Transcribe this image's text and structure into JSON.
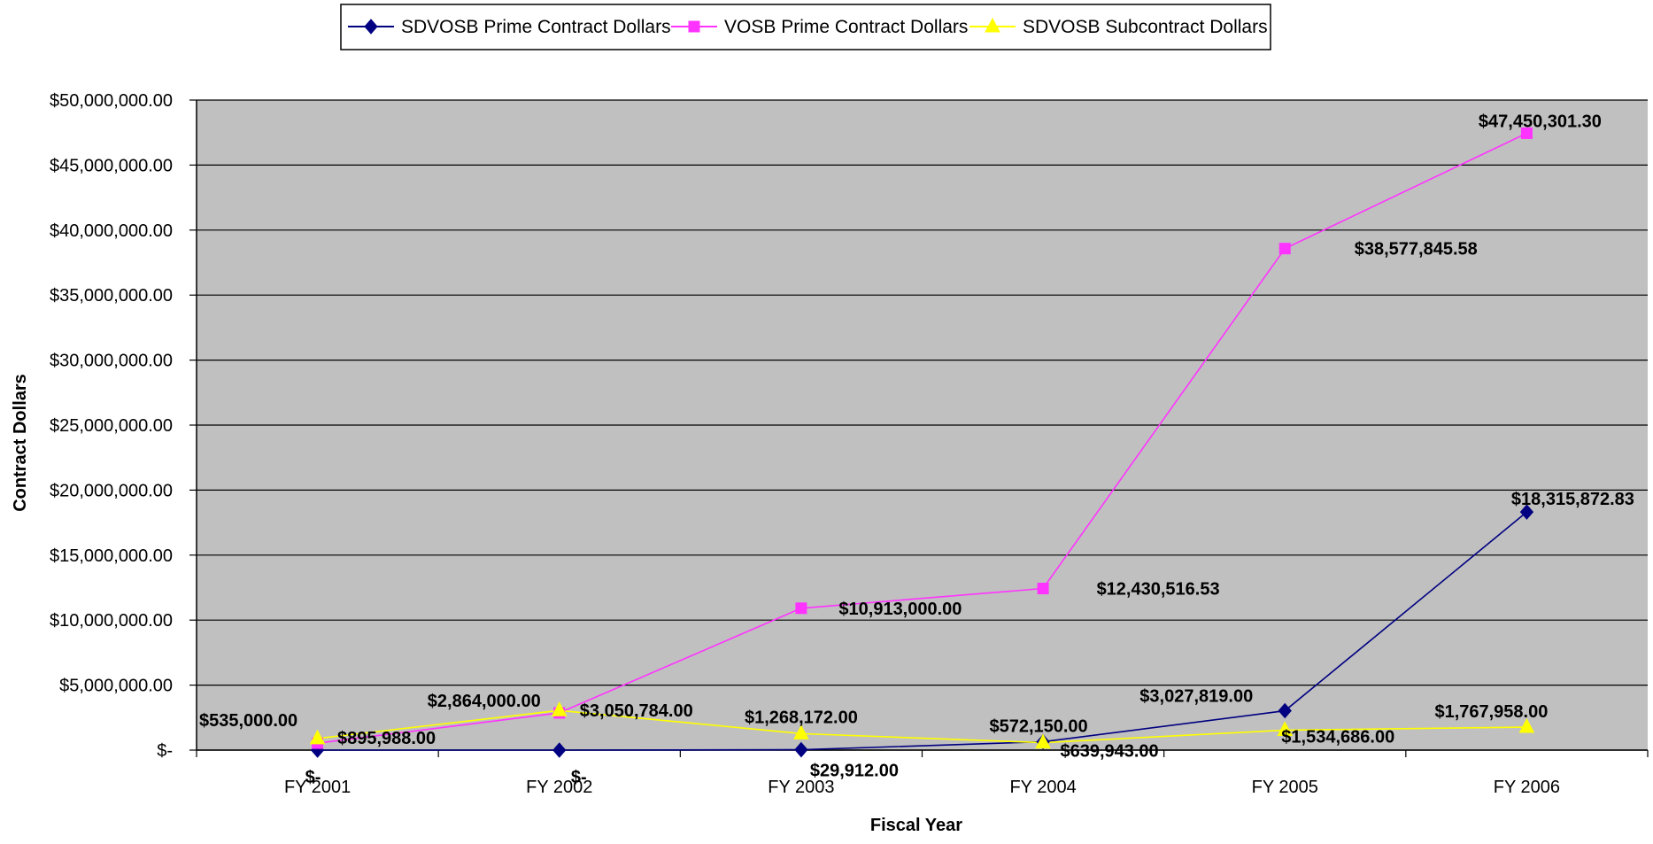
{
  "chart_data": {
    "type": "line",
    "title": "",
    "xlabel": "Fiscal Year",
    "ylabel": "Contract Dollars",
    "categories": [
      "FY 2001",
      "FY 2002",
      "FY 2003",
      "FY 2004",
      "FY 2005",
      "FY 2006"
    ],
    "ylim": [
      0,
      50000000
    ],
    "y_ticks": [
      0,
      5000000,
      10000000,
      15000000,
      20000000,
      25000000,
      30000000,
      35000000,
      40000000,
      45000000,
      50000000
    ],
    "y_tick_labels": [
      "$-",
      "$5,000,000.00",
      "$10,000,000.00",
      "$15,000,000.00",
      "$20,000,000.00",
      "$25,000,000.00",
      "$30,000,000.00",
      "$35,000,000.00",
      "$40,000,000.00",
      "$45,000,000.00",
      "$50,000,000.00"
    ],
    "grid": true,
    "plot_background": "#c0c0c0",
    "legend_position": "top",
    "series": [
      {
        "name": "SDVOSB Prime Contract Dollars",
        "color": "#000080",
        "marker": "diamond",
        "values": [
          0,
          0,
          29912,
          639943,
          3027819,
          18315872.83
        ],
        "labels": [
          "$-",
          "$-",
          "$29,912.00",
          "$639,943.00",
          "$3,027,819.00",
          "$18,315,872.83"
        ]
      },
      {
        "name": "VOSB Prime Contract Dollars",
        "color": "#ff33ff",
        "marker": "square",
        "values": [
          535000,
          2864000,
          10913000,
          12430516.53,
          38577845.58,
          47450301.3
        ],
        "labels": [
          "$535,000.00",
          "$2,864,000.00",
          "$10,913,000.00",
          "$12,430,516.53",
          "$38,577,845.58",
          "$47,450,301.30"
        ]
      },
      {
        "name": "SDVOSB Subcontract Dollars",
        "color": "#ffff00",
        "marker": "triangle",
        "values": [
          895988,
          3050784,
          1268172,
          572150,
          1534686,
          1767958
        ],
        "labels": [
          "$895,988.00",
          "$3,050,784.00",
          "$1,268,172.00",
          "$572,150.00",
          "$1,534,686.00",
          "$1,767,958.00"
        ]
      }
    ]
  }
}
